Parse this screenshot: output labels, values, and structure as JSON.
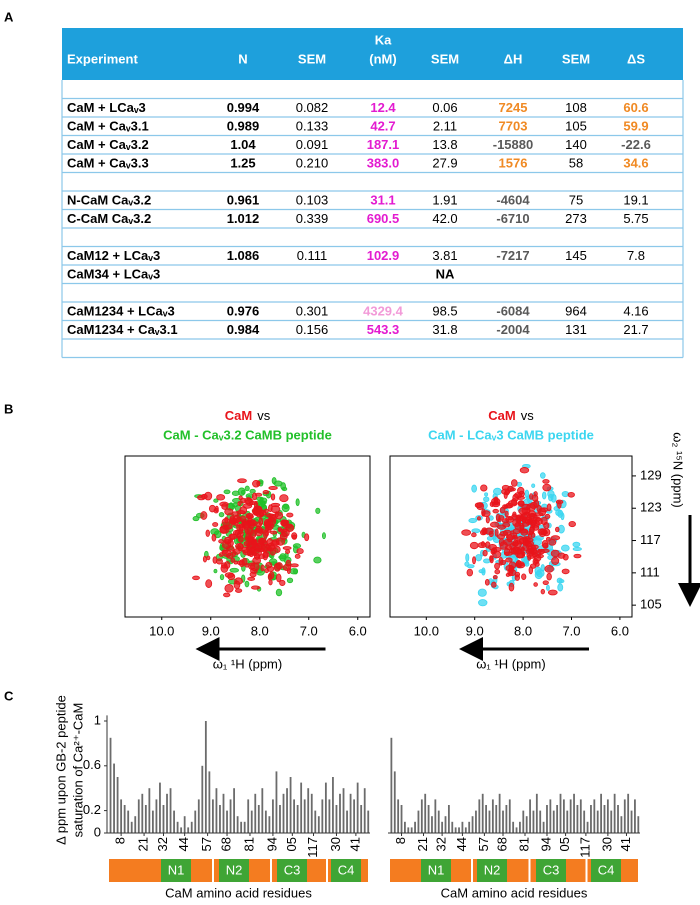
{
  "panel_labels": [
    "A",
    "B",
    "C"
  ],
  "table": {
    "header": [
      "Experiment",
      "N",
      "SEM",
      [
        "Ka",
        "(nM)"
      ],
      "SEM",
      "ΔH",
      "SEM",
      "ΔS"
    ],
    "groups": [
      [
        {
          "cells": [
            "CaM + LCaᵥ3",
            "0.994",
            "0.082",
            "12.4",
            "0.06",
            "7245",
            "108",
            "60.6"
          ],
          "colors": [
            null,
            null,
            null,
            "#e31bd0",
            null,
            "#f08a24",
            null,
            "#f08a24"
          ]
        },
        {
          "cells": [
            "CaM + Caᵥ3.1",
            "0.989",
            "0.133",
            "42.7",
            "2.11",
            "7703",
            "105",
            "59.9"
          ],
          "colors": [
            null,
            null,
            null,
            "#e31bd0",
            null,
            "#f08a24",
            null,
            "#f08a24"
          ]
        },
        {
          "cells": [
            "CaM + Caᵥ3.2",
            "1.04",
            "0.091",
            "187.1",
            "13.8",
            "-15880",
            "140",
            "-22.6"
          ],
          "colors": [
            null,
            null,
            null,
            "#e31bd0",
            null,
            "#595959",
            null,
            "#595959"
          ]
        },
        {
          "cells": [
            "CaM + Caᵥ3.3",
            "1.25",
            "0.210",
            "383.0",
            "27.9",
            "1576",
            "58",
            "34.6"
          ],
          "colors": [
            null,
            null,
            null,
            "#e31bd0",
            null,
            "#f08a24",
            null,
            "#f08a24"
          ]
        }
      ],
      [
        {
          "cells": [
            "N-CaM Caᵥ3.2",
            "0.961",
            "0.103",
            "31.1",
            "1.91",
            "-4604",
            "75",
            "19.1"
          ],
          "colors": [
            null,
            null,
            null,
            "#e31bd0",
            null,
            "#595959",
            null,
            null
          ]
        },
        {
          "cells": [
            "C-CaM Caᵥ3.2",
            "1.012",
            "0.339",
            "690.5",
            "42.0",
            "-6710",
            "273",
            "5.75"
          ],
          "colors": [
            null,
            null,
            null,
            "#e31bd0",
            null,
            "#595959",
            null,
            null
          ]
        }
      ],
      [
        {
          "cells": [
            "CaM12 + LCaᵥ3",
            "1.086",
            "0.111",
            "102.9",
            "3.81",
            "-7217",
            "145",
            "7.8"
          ],
          "colors": [
            null,
            null,
            null,
            "#e31bd0",
            null,
            "#595959",
            null,
            null
          ]
        },
        {
          "cells": [
            "CaM34 + LCaᵥ3",
            null,
            null,
            null,
            "NA",
            null,
            null,
            null
          ],
          "colors": [
            null,
            null,
            null,
            null,
            "#000000",
            null,
            null,
            null
          ]
        }
      ],
      [
        {
          "cells": [
            "CaM1234 + LCaᵥ3",
            "0.976",
            "0.301",
            "4329.4",
            "98.5",
            "-6084",
            "964",
            "4.16"
          ],
          "colors": [
            null,
            null,
            null,
            "#f29ad8",
            null,
            "#595959",
            null,
            null
          ]
        },
        {
          "cells": [
            "CaM1234 + Caᵥ3.1",
            "0.984",
            "0.156",
            "543.3",
            "31.8",
            "-2004",
            "131",
            "21.7"
          ],
          "colors": [
            null,
            null,
            null,
            "#e31bd0",
            null,
            "#595959",
            null,
            null
          ]
        }
      ]
    ]
  },
  "spectra": {
    "panels": [
      {
        "reference": "CaM",
        "vs": "vs",
        "complex": "CaM - Caᵥ3.2 CaMB peptide",
        "reference_color": "#e8141b",
        "complex_color": "#22c02a"
      },
      {
        "reference": "CaM",
        "vs": "vs",
        "complex": "CaM - LCaᵥ3 CaMB peptide",
        "reference_color": "#e8141b",
        "complex_color": "#3cd6f0"
      }
    ],
    "x_label": "ω₁ ¹H (ppm)",
    "xlim": [
      10.75,
      5.75
    ],
    "xticks": [
      {
        "value": 10,
        "label": "10.0"
      },
      {
        "value": 9,
        "label": "9.0"
      },
      {
        "value": 8,
        "label": "8.0"
      },
      {
        "value": 7,
        "label": "7.0"
      },
      {
        "value": 6,
        "label": "6.0"
      }
    ],
    "y_label": "ω₂ ¹⁵N (ppm)",
    "ylim": [
      102.8,
      132.7
    ],
    "yticks": [
      105,
      111,
      117,
      123,
      129
    ]
  },
  "chart_data": [
    {
      "type": "bar",
      "ylabel": [
        "Δ ppm upon GB-2 peptide",
        "saturation of Ca²⁺-CaM"
      ],
      "xlabel": "CaM amino acid residues",
      "color": "#6b6b6b",
      "x": [
        2,
        4,
        6,
        8,
        10,
        12,
        14,
        16,
        18,
        20,
        22,
        24,
        26,
        28,
        30,
        32,
        34,
        36,
        38,
        40,
        42,
        44,
        46,
        48,
        50,
        52,
        54,
        56,
        58,
        60,
        62,
        64,
        66,
        68,
        70,
        72,
        74,
        76,
        78,
        80,
        82,
        84,
        86,
        88,
        90,
        92,
        94,
        96,
        98,
        100,
        102,
        104,
        106,
        108,
        110,
        112,
        114,
        116,
        118,
        120,
        122,
        124,
        126,
        128,
        130,
        132,
        134,
        136,
        138,
        140,
        142,
        144,
        146,
        148
      ],
      "values": [
        0.85,
        0.62,
        0.5,
        0.3,
        0.25,
        0.2,
        0.1,
        0.15,
        0.3,
        0.35,
        0.25,
        0.4,
        0.2,
        0.3,
        0.45,
        0.25,
        0.35,
        0.4,
        0.2,
        0.1,
        0.05,
        0.15,
        0.05,
        0.1,
        0.2,
        0.3,
        0.6,
        1.0,
        0.55,
        0.3,
        0.4,
        0.25,
        0.35,
        0.2,
        0.3,
        0.4,
        0.15,
        0.1,
        0.1,
        0.3,
        0.2,
        0.35,
        0.25,
        0.4,
        0.2,
        0.15,
        0.3,
        0.55,
        0.25,
        0.35,
        0.4,
        0.5,
        0.3,
        0.25,
        0.45,
        0.3,
        0.4,
        0.35,
        0.2,
        0.15,
        0.3,
        0.45,
        0.3,
        0.5,
        0.25,
        0.35,
        0.4,
        0.2,
        0.35,
        0.3,
        0.45,
        0.25,
        0.4,
        0.2
      ],
      "xlim": [
        0,
        149
      ],
      "ylim": [
        0,
        1.05
      ],
      "yticks": [
        0,
        0.2,
        0.6,
        1
      ],
      "xticks": [
        8,
        21,
        32,
        44,
        57,
        68,
        81,
        94,
        {
          "value": 105,
          "label": "05"
        },
        117,
        {
          "value": 130,
          "label": "30"
        },
        {
          "value": 141,
          "label": "41"
        }
      ],
      "domains": [
        "N1",
        "N2",
        "C3",
        "C4"
      ]
    },
    {
      "type": "bar",
      "xlabel": "CaM amino acid residues",
      "color": "#6b6b6b",
      "x": [
        2,
        4,
        6,
        8,
        10,
        12,
        14,
        16,
        18,
        20,
        22,
        24,
        26,
        28,
        30,
        32,
        34,
        36,
        38,
        40,
        42,
        44,
        46,
        48,
        50,
        52,
        54,
        56,
        58,
        60,
        62,
        64,
        66,
        68,
        70,
        72,
        74,
        76,
        78,
        80,
        82,
        84,
        86,
        88,
        90,
        92,
        94,
        96,
        98,
        100,
        102,
        104,
        106,
        108,
        110,
        112,
        114,
        116,
        118,
        120,
        122,
        124,
        126,
        128,
        130,
        132,
        134,
        136,
        138,
        140,
        142,
        144,
        146,
        148
      ],
      "values": [
        0.85,
        0.55,
        0.3,
        0.25,
        0.1,
        0.05,
        0.05,
        0.1,
        0.2,
        0.3,
        0.35,
        0.25,
        0.15,
        0.3,
        0.2,
        0.1,
        0.15,
        0.25,
        0.1,
        0.05,
        0.05,
        0.1,
        0.05,
        0.1,
        0.15,
        0.2,
        0.3,
        0.35,
        0.25,
        0.2,
        0.3,
        0.25,
        0.35,
        0.2,
        0.25,
        0.3,
        0.1,
        0.05,
        0.1,
        0.2,
        0.15,
        0.3,
        0.2,
        0.35,
        0.2,
        0.1,
        0.25,
        0.3,
        0.2,
        0.25,
        0.35,
        0.3,
        0.2,
        0.3,
        0.35,
        0.25,
        0.3,
        0.2,
        0.1,
        0.25,
        0.3,
        0.2,
        0.35,
        0.25,
        0.3,
        0.2,
        0.35,
        0.25,
        0.15,
        0.3,
        0.35,
        0.2,
        0.3,
        0.15
      ],
      "xlim": [
        0,
        149
      ],
      "ylim": [
        0,
        1.05
      ],
      "xticks": [
        8,
        21,
        32,
        44,
        57,
        68,
        81,
        94,
        {
          "value": 105,
          "label": "05"
        },
        117,
        {
          "value": 130,
          "label": "30"
        },
        {
          "value": 141,
          "label": "41"
        }
      ],
      "domains": [
        "N1",
        "N2",
        "C3",
        "C4"
      ]
    }
  ]
}
